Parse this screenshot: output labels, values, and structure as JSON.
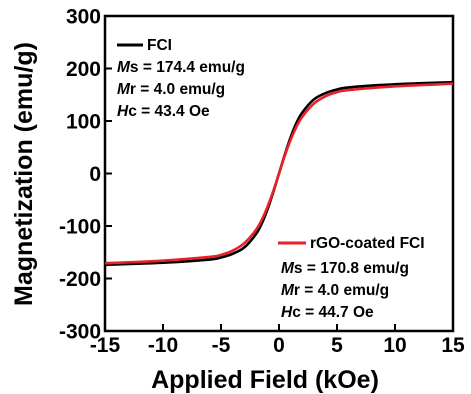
{
  "chart_data": {
    "type": "line",
    "title": "",
    "xlabel": "Applied Field (kOe)",
    "ylabel": "Magnetization (emu/g)",
    "xlim": [
      -15,
      15
    ],
    "ylim": [
      -300,
      300
    ],
    "xticks": [
      "-15",
      "-10",
      "-5",
      "0",
      "5",
      "10",
      "15"
    ],
    "yticks": [
      "300",
      "200",
      "100",
      "0",
      "-100",
      "-200",
      "-300"
    ],
    "grid": false,
    "series": [
      {
        "name": "FCI",
        "color": "#000000",
        "ms_label": "s = 174.4 emu/g",
        "mr_label": "r = 4.0 emu/g",
        "hc_label": "c = 43.4 Oe",
        "x": [
          -15,
          -10,
          -6,
          -5,
          -4,
          -3,
          -2,
          -1.5,
          -1,
          -0.5,
          0,
          0.5,
          1,
          1.5,
          2,
          3,
          4,
          5,
          6,
          10,
          15
        ],
        "y": [
          -174,
          -170,
          -164,
          -160,
          -153,
          -141,
          -116,
          -96,
          -69,
          -36,
          0,
          36,
          69,
          96,
          116,
          141,
          153,
          160,
          164,
          170,
          174
        ]
      },
      {
        "name": "rGO-coated FCI",
        "color": "#e8202a",
        "ms_label": "s = 170.8 emu/g",
        "mr_label": "r = 4.0 emu/g",
        "hc_label": "c = 44.7 Oe",
        "x": [
          -15,
          -10,
          -6,
          -5,
          -4,
          -3,
          -2,
          -1.5,
          -1,
          -0.5,
          0,
          0.5,
          1,
          1.5,
          2,
          3,
          4,
          5,
          6,
          10,
          15
        ],
        "y": [
          -171,
          -166,
          -159,
          -155,
          -147,
          -133,
          -108,
          -89,
          -64,
          -34,
          0,
          34,
          64,
          89,
          108,
          133,
          147,
          155,
          159,
          166,
          171
        ]
      }
    ]
  },
  "annotation_symbols": {
    "ms": "M",
    "mr": "M",
    "hc": "H"
  }
}
